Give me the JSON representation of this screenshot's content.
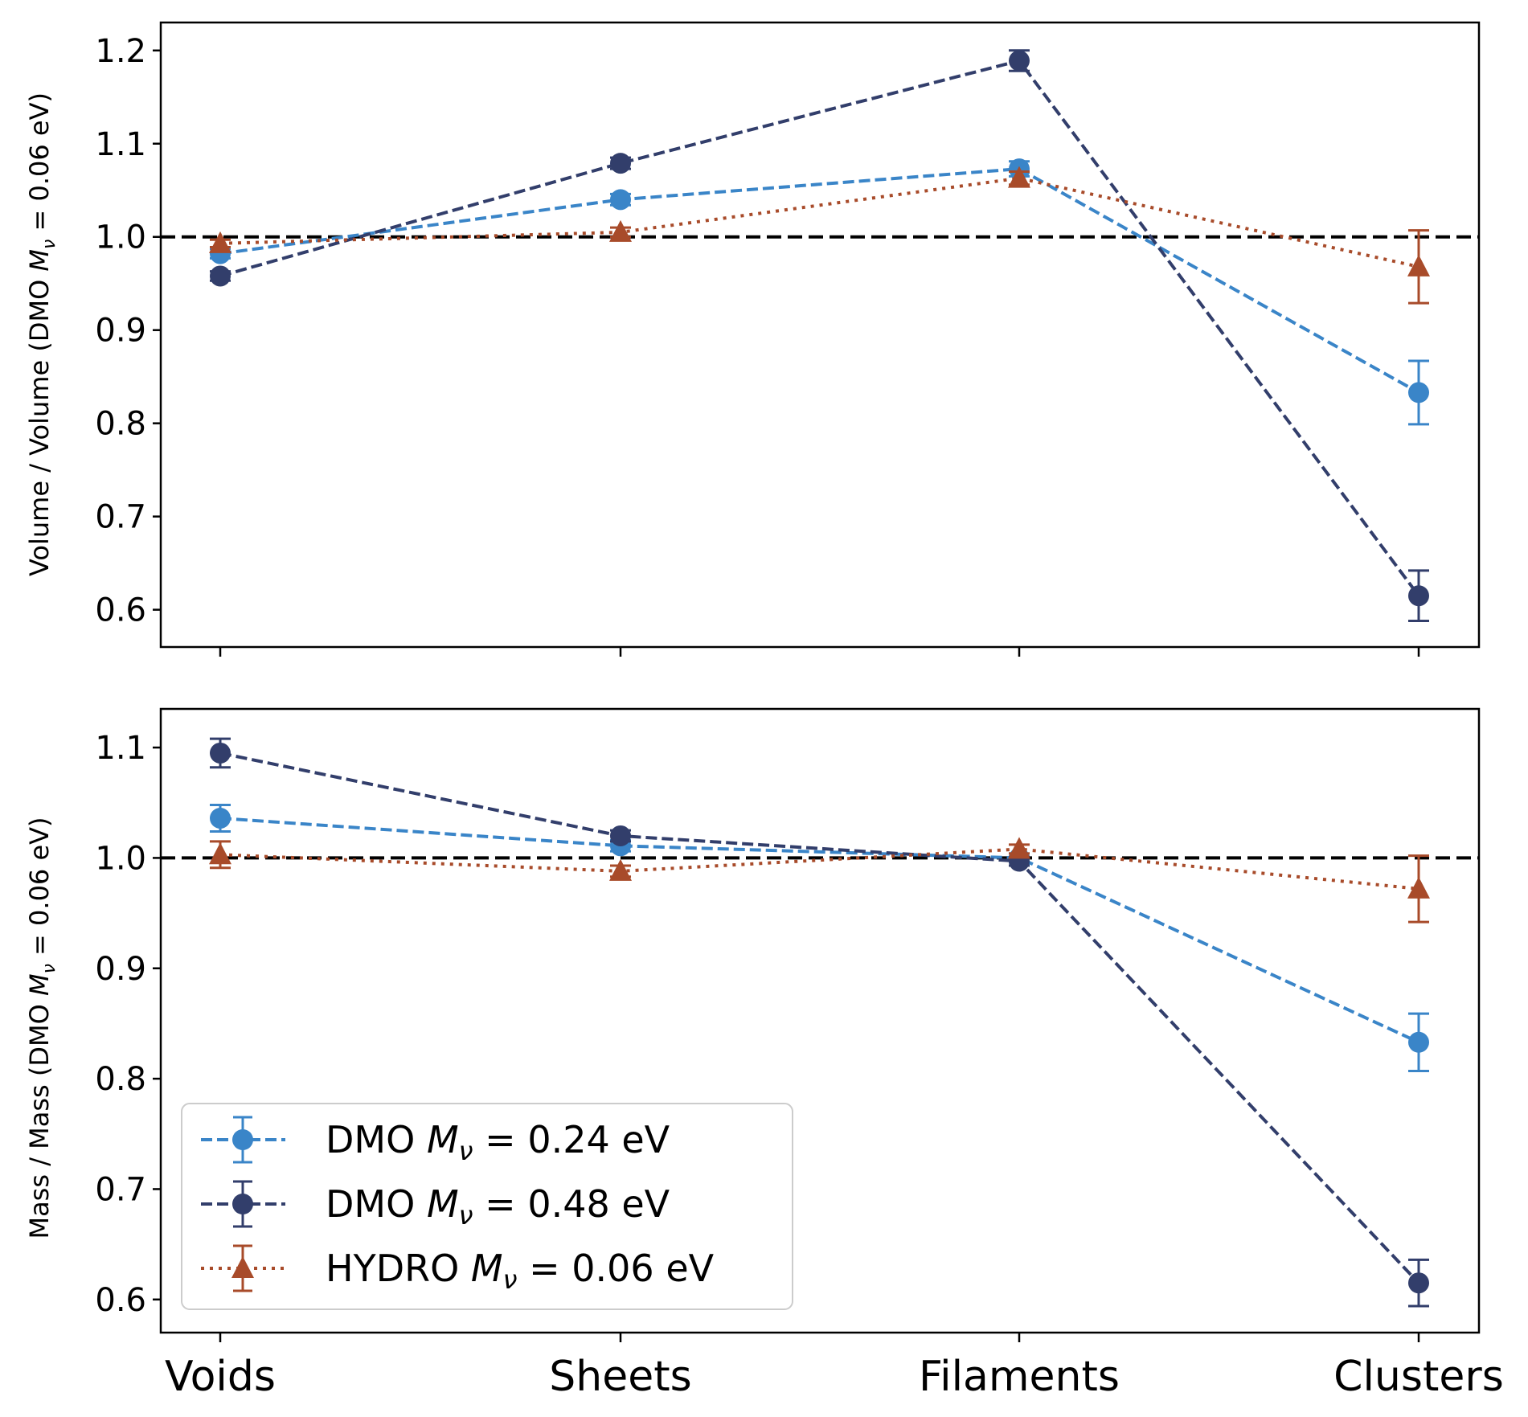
{
  "chart_data": [
    {
      "type": "line",
      "panel": "top",
      "ylabel": "Volume / Volume (DMO M_ν = 0.06 eV)",
      "ylabel_parts": {
        "prefix": "Volume / Volume (DMO ",
        "var": "M",
        "sub": "ν",
        "suffix": " = 0.06 eV)"
      },
      "ylim": [
        0.56,
        1.23
      ],
      "yticks": [
        0.6,
        0.7,
        0.8,
        0.9,
        1.0,
        1.1,
        1.2
      ],
      "ytick_labels": [
        "0.6",
        "0.7",
        "0.8",
        "0.9",
        "1.0",
        "1.1",
        "1.2"
      ],
      "reference_line": 1.0,
      "categories": [
        "Voids",
        "Sheets",
        "Filaments",
        "Clusters"
      ],
      "series": [
        {
          "name": "DMO M_ν = 0.24 eV",
          "values": [
            0.982,
            1.04,
            1.073,
            0.833
          ],
          "errors": [
            0.005,
            0.006,
            0.008,
            0.034
          ]
        },
        {
          "name": "DMO M_ν = 0.48 eV",
          "values": [
            0.958,
            1.079,
            1.189,
            0.615
          ],
          "errors": [
            0.005,
            0.006,
            0.011,
            0.027
          ]
        },
        {
          "name": "HYDRO M_ν = 0.06 eV",
          "values": [
            0.993,
            1.005,
            1.063,
            0.968
          ],
          "errors": [
            0.004,
            0.005,
            0.007,
            0.039
          ]
        }
      ]
    },
    {
      "type": "line",
      "panel": "bottom",
      "ylabel": "Mass / Mass (DMO M_ν = 0.06 eV)",
      "ylabel_parts": {
        "prefix": "Mass / Mass (DMO ",
        "var": "M",
        "sub": "ν",
        "suffix": " = 0.06 eV)"
      },
      "ylim": [
        0.57,
        1.135
      ],
      "yticks": [
        0.6,
        0.7,
        0.8,
        0.9,
        1.0,
        1.1
      ],
      "ytick_labels": [
        "0.6",
        "0.7",
        "0.8",
        "0.9",
        "1.0",
        "1.1"
      ],
      "reference_line": 1.0,
      "categories": [
        "Voids",
        "Sheets",
        "Filaments",
        "Clusters"
      ],
      "series": [
        {
          "name": "DMO M_ν = 0.24 eV",
          "values": [
            1.036,
            1.011,
            1.0,
            0.833
          ],
          "errors": [
            0.012,
            0.005,
            0.004,
            0.026
          ]
        },
        {
          "name": "DMO M_ν = 0.48 eV",
          "values": [
            1.095,
            1.02,
            0.997,
            0.615
          ],
          "errors": [
            0.013,
            0.005,
            0.004,
            0.021
          ]
        },
        {
          "name": "HYDRO M_ν = 0.06 eV",
          "values": [
            1.003,
            0.988,
            1.008,
            0.972
          ],
          "errors": [
            0.012,
            0.005,
            0.004,
            0.03
          ]
        }
      ]
    }
  ],
  "legend": {
    "location": "lower-left",
    "entries": [
      {
        "prefix": "DMO ",
        "var": "M",
        "sub": "ν",
        "suffix": " = 0.24 eV"
      },
      {
        "prefix": "DMO ",
        "var": "M",
        "sub": "ν",
        "suffix": " = 0.48 eV"
      },
      {
        "prefix": "HYDRO ",
        "var": "M",
        "sub": "ν",
        "suffix": " = 0.06 eV"
      }
    ]
  },
  "colors": {
    "dmo_024": "#3a85c8",
    "dmo_048": "#323e6b",
    "hydro_006": "#a84b2a",
    "reference": "#000000"
  }
}
